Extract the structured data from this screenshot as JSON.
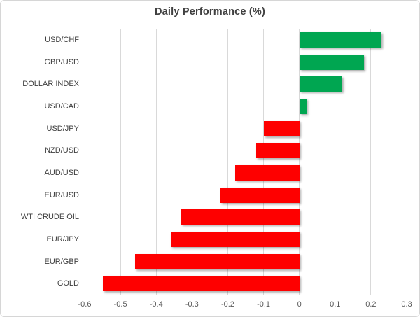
{
  "chart": {
    "title": "Daily Performance (%)"
  },
  "chart_data": {
    "type": "bar",
    "orientation": "horizontal",
    "title": "Daily Performance (%)",
    "categories": [
      "USD/CHF",
      "GBP/USD",
      "DOLLAR INDEX",
      "USD/CAD",
      "USD/JPY",
      "NZD/USD",
      "AUD/USD",
      "EUR/USD",
      "WTI CRUDE OIL",
      "EUR/JPY",
      "EUR/GBP",
      "GOLD"
    ],
    "values": [
      0.23,
      0.18,
      0.12,
      0.02,
      -0.1,
      -0.12,
      -0.18,
      -0.22,
      -0.33,
      -0.36,
      -0.46,
      -0.55
    ],
    "xlabel": "",
    "ylabel": "",
    "xlim": [
      -0.6,
      0.3
    ],
    "xticks": [
      "-0.6",
      "-0.5",
      "-0.4",
      "-0.3",
      "-0.2",
      "-0.1",
      "0",
      "0.1",
      "0.2",
      "0.3"
    ],
    "xtick_values": [
      -0.6,
      -0.5,
      -0.4,
      -0.3,
      -0.2,
      -0.1,
      0,
      0.1,
      0.2,
      0.3
    ],
    "grid": true,
    "legend": false,
    "colors": {
      "positive": "#00A651",
      "negative": "#FE0000",
      "gridline": "#D9D9D9",
      "title_text": "#404040",
      "label_text": "#404040",
      "tick_text": "#595959",
      "border": "#D6D6D6"
    }
  }
}
